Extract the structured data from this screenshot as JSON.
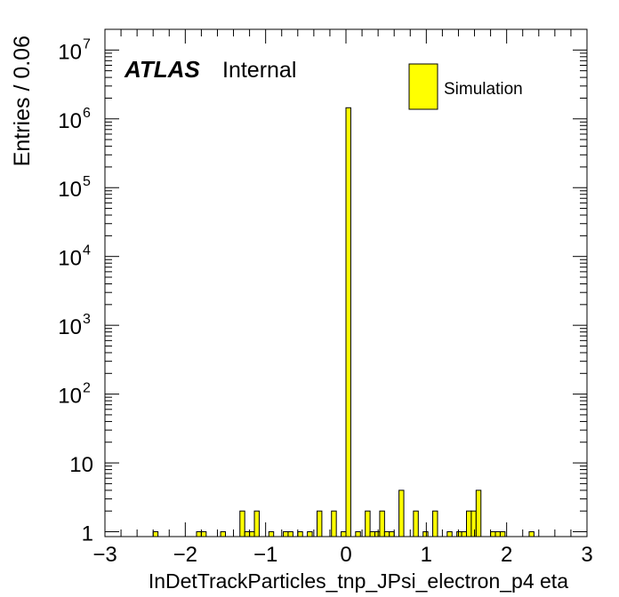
{
  "chart_data": {
    "type": "bar",
    "xlabel": "InDetTrackParticles_tnp_JPsi_electron_p4 eta",
    "ylabel": "Entries / 0.06",
    "xlim": [
      -3,
      3
    ],
    "ylim": [
      0.85,
      20000000
    ],
    "log_y": true,
    "bin_width": 0.06,
    "x_ticks": [
      -3,
      -2,
      -1,
      0,
      1,
      2,
      3
    ],
    "x_tick_labels": [
      "−3",
      "−2",
      "−1",
      "0",
      "1",
      "2",
      "3"
    ],
    "y_ticks": [
      1,
      10,
      100,
      1000,
      10000,
      100000,
      1000000,
      10000000
    ],
    "y_tick_labels": [
      {
        "base": "1",
        "exp": ""
      },
      {
        "base": "10",
        "exp": ""
      },
      {
        "base": "10",
        "exp": "2"
      },
      {
        "base": "10",
        "exp": "3"
      },
      {
        "base": "10",
        "exp": "4"
      },
      {
        "base": "10",
        "exp": "5"
      },
      {
        "base": "10",
        "exp": "6"
      },
      {
        "base": "10",
        "exp": "7"
      }
    ],
    "series": [
      {
        "name": "Simulation",
        "color": "#ffff00",
        "bins": [
          {
            "x": -2.4,
            "y": 1
          },
          {
            "x": -1.86,
            "y": 1
          },
          {
            "x": -1.8,
            "y": 1
          },
          {
            "x": -1.56,
            "y": 1
          },
          {
            "x": -1.32,
            "y": 2
          },
          {
            "x": -1.26,
            "y": 1
          },
          {
            "x": -1.2,
            "y": 1
          },
          {
            "x": -1.14,
            "y": 2
          },
          {
            "x": -0.96,
            "y": 1
          },
          {
            "x": -0.78,
            "y": 1
          },
          {
            "x": -0.72,
            "y": 1
          },
          {
            "x": -0.6,
            "y": 1
          },
          {
            "x": -0.48,
            "y": 1
          },
          {
            "x": -0.36,
            "y": 2
          },
          {
            "x": -0.18,
            "y": 2
          },
          {
            "x": -0.06,
            "y": 1
          },
          {
            "x": 0.0,
            "y": 1450000
          },
          {
            "x": 0.12,
            "y": 1
          },
          {
            "x": 0.24,
            "y": 2
          },
          {
            "x": 0.3,
            "y": 1
          },
          {
            "x": 0.36,
            "y": 1
          },
          {
            "x": 0.42,
            "y": 2
          },
          {
            "x": 0.48,
            "y": 1
          },
          {
            "x": 0.54,
            "y": 1
          },
          {
            "x": 0.66,
            "y": 4
          },
          {
            "x": 0.84,
            "y": 2
          },
          {
            "x": 0.96,
            "y": 1
          },
          {
            "x": 1.08,
            "y": 2
          },
          {
            "x": 1.26,
            "y": 1
          },
          {
            "x": 1.38,
            "y": 1
          },
          {
            "x": 1.44,
            "y": 1
          },
          {
            "x": 1.5,
            "y": 2
          },
          {
            "x": 1.56,
            "y": 2
          },
          {
            "x": 1.62,
            "y": 4
          },
          {
            "x": 1.8,
            "y": 1
          },
          {
            "x": 1.86,
            "y": 1
          },
          {
            "x": 1.92,
            "y": 1
          },
          {
            "x": 2.28,
            "y": 1
          }
        ]
      }
    ],
    "legend": {
      "position": "top-right",
      "label": "Simulation"
    },
    "annotations": {
      "atlas": "ATLAS",
      "status": "Internal"
    },
    "grid": false
  }
}
